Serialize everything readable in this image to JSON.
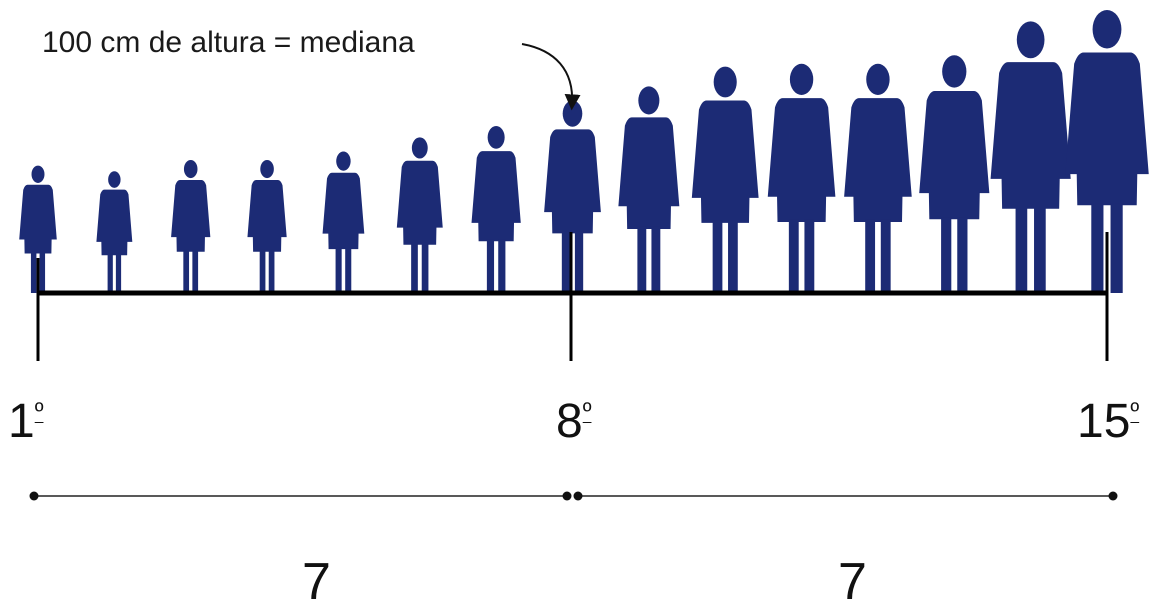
{
  "annotation": {
    "text": "100 cm de altura = mediana"
  },
  "figures": {
    "count": 15,
    "median_index": 8,
    "color": "#1c2b75",
    "relative_heights": [
      0.45,
      0.43,
      0.47,
      0.47,
      0.5,
      0.55,
      0.59,
      0.68,
      0.73,
      0.8,
      0.81,
      0.81,
      0.84,
      0.96,
      1.0
    ]
  },
  "ranks": [
    {
      "number": "1",
      "suffix": "º"
    },
    {
      "number": "8",
      "suffix": "º"
    },
    {
      "number": "15",
      "suffix": "º"
    }
  ],
  "counts": {
    "lower": "7",
    "upper": "7"
  },
  "colors": {
    "axis": "#000000",
    "figure": "#1c2b75"
  }
}
